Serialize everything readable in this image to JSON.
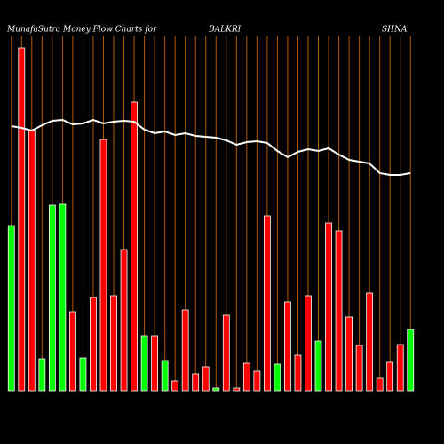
{
  "chart_data": {
    "type": "bar",
    "title": "MunafaSutra  Money Flow  Charts for",
    "title_symbol_part1": "BALKRI",
    "title_symbol_part2": "SHNA",
    "categories": [
      null,
      null,
      null,
      null,
      null,
      null,
      null,
      null,
      null,
      null,
      null,
      null,
      null,
      null,
      null,
      null,
      null,
      null,
      null,
      null,
      null,
      null,
      null,
      null,
      null,
      null,
      null,
      null,
      null,
      null,
      null,
      null,
      null,
      null,
      null,
      null,
      null,
      null,
      null,
      null
    ],
    "values": [
      186,
      386,
      293,
      36,
      209,
      210,
      89,
      37,
      105,
      283,
      107,
      159,
      325,
      62,
      62,
      34,
      11,
      91,
      19,
      27,
      3,
      85,
      3,
      31,
      22,
      197,
      30,
      100,
      40,
      107,
      56,
      189,
      180,
      83,
      51,
      110,
      14,
      32,
      52,
      69
    ],
    "colors": [
      "#00ff00",
      "#ff0000",
      "#ff0000",
      "#00ff00",
      "#00ff00",
      "#00ff00",
      "#ff0000",
      "#00ff00",
      "#ff0000",
      "#ff0000",
      "#ff0000",
      "#ff0000",
      "#ff0000",
      "#00ff00",
      "#ff0000",
      "#00ff00",
      "#ff0000",
      "#ff0000",
      "#ff0000",
      "#ff0000",
      "#00ff00",
      "#ff0000",
      "#ff0000",
      "#ff0000",
      "#ff0000",
      "#ff0000",
      "#00ff00",
      "#ff0000",
      "#ff0000",
      "#ff0000",
      "#00ff00",
      "#ff0000",
      "#ff0000",
      "#ff0000",
      "#ff0000",
      "#ff0000",
      "#ff0000",
      "#ff0000",
      "#ff0000",
      "#00ff00"
    ],
    "line": {
      "color": "#ffffff",
      "values": [
        298,
        296,
        293,
        299,
        304,
        305,
        300,
        301,
        305,
        301,
        303,
        304,
        303,
        294,
        290,
        292,
        288,
        290,
        287,
        286,
        285,
        282,
        277,
        280,
        281,
        279,
        270,
        263,
        269,
        272,
        270,
        273,
        266,
        260,
        258,
        256,
        245,
        243,
        243,
        245
      ]
    },
    "ylim": [
      0,
      400
    ],
    "grid_color": "#b35900"
  }
}
